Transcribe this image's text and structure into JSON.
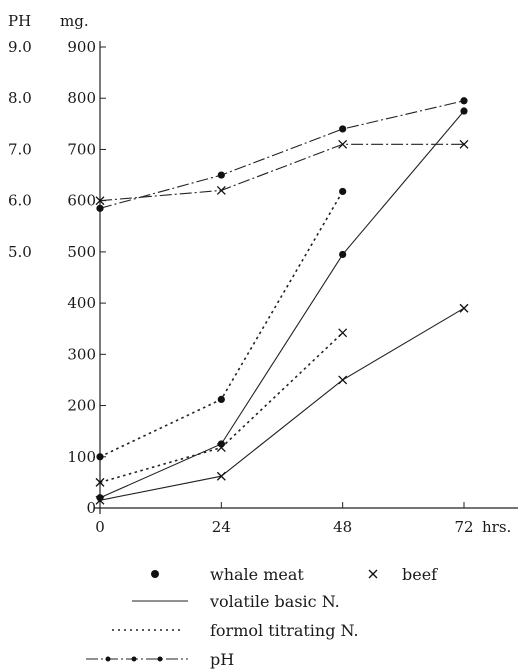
{
  "chart_data": {
    "type": "line",
    "axis_titles": {
      "ph": "PH",
      "mg": "mg.",
      "x_unit": "hrs."
    },
    "x": [
      0,
      24,
      48,
      72
    ],
    "xlim": [
      0,
      72
    ],
    "ylim": [
      0,
      900
    ],
    "ph_ticks": [
      "9.0",
      "8.0",
      "7.0",
      "6.0",
      "5.0"
    ],
    "mg_ticks": [
      "900",
      "800",
      "700",
      "600",
      "500",
      "400",
      "300",
      "200",
      "100",
      "0"
    ],
    "x_ticks": [
      "0",
      "24",
      "48",
      "72"
    ],
    "x_unit_tick": "hrs.",
    "grid": false,
    "series": [
      {
        "name": "whale meat volatile basic N.",
        "marker": "dot",
        "style": "solid",
        "points": [
          [
            0,
            20
          ],
          [
            24,
            125
          ],
          [
            48,
            495
          ],
          [
            72,
            775
          ]
        ]
      },
      {
        "name": "beef volatile basic N.",
        "marker": "x",
        "style": "solid",
        "points": [
          [
            0,
            15
          ],
          [
            24,
            62
          ],
          [
            48,
            250
          ],
          [
            72,
            390
          ]
        ]
      },
      {
        "name": "whale meat formol titrating N.",
        "marker": "dot",
        "style": "dotted",
        "points": [
          [
            0,
            100
          ],
          [
            24,
            212
          ],
          [
            48,
            618
          ]
        ]
      },
      {
        "name": "beef formol titrating N.",
        "marker": "x",
        "style": "dotted",
        "points": [
          [
            0,
            50
          ],
          [
            24,
            118
          ],
          [
            48,
            342
          ]
        ]
      },
      {
        "name": "whale meat pH",
        "marker": "dot",
        "style": "dashdot",
        "points": [
          [
            0,
            5.85
          ],
          [
            24,
            6.5
          ],
          [
            48,
            7.4
          ],
          [
            72,
            7.95
          ]
        ]
      },
      {
        "name": "beef pH",
        "marker": "x",
        "style": "dashdot",
        "points": [
          [
            0,
            6.0
          ],
          [
            24,
            6.2
          ],
          [
            48,
            7.1
          ],
          [
            72,
            7.1
          ]
        ]
      }
    ],
    "legend": {
      "placement": "bottom",
      "whale_label": "whale meat",
      "beef_label": "beef",
      "volatile_label": "volatile basic N.",
      "formol_label": "formol titrating N.",
      "ph_label": "pH"
    }
  }
}
